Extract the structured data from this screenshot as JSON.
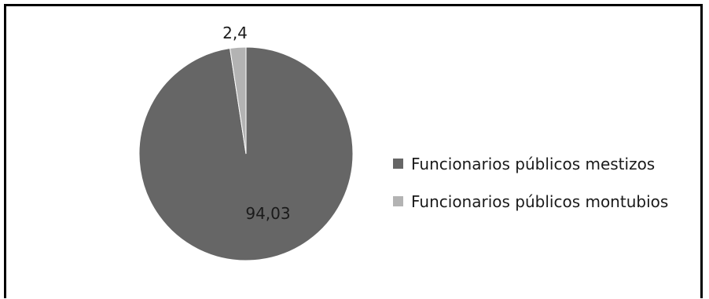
{
  "chart_data": {
    "type": "pie",
    "title": "",
    "series": [
      {
        "name": "Funcionarios públicos mestizos",
        "value": 94.03,
        "label": "94,03",
        "color": "#666666"
      },
      {
        "name": "Funcionarios públicos montubios",
        "value": 2.4,
        "label": "2,4",
        "color": "#b3b3b3"
      }
    ],
    "legend_position": "right"
  }
}
